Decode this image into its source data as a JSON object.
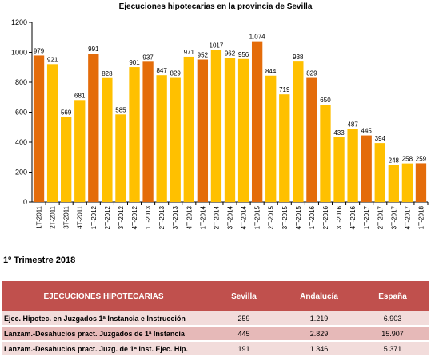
{
  "chart_data": {
    "type": "bar",
    "title": "Ejecuciones hipotecarias  en la provincia de Sevilla",
    "categories": [
      "1T-2011",
      "2T-2011",
      "3T-2011",
      "4T-2011",
      "1T-2012",
      "2T-2012",
      "3T-2012",
      "4T-2012",
      "1T-2013",
      "2T-2013",
      "3T-2013",
      "4T-2013",
      "1T-2014",
      "2T-2014",
      "3T-2014",
      "4T-2014",
      "1T-2015",
      "2T-2015",
      "3T-2015",
      "4T-2015",
      "1T-2016",
      "2T-2016",
      "3T-2016",
      "4T-2016",
      "1T-2017",
      "2T-2017",
      "3T-2017",
      "4T-2017",
      "1T-2018"
    ],
    "values": [
      979,
      921,
      569,
      681,
      991,
      828,
      585,
      901,
      937,
      847,
      829,
      971,
      952,
      1017,
      962,
      956,
      1074,
      844,
      719,
      938,
      829,
      650,
      433,
      487,
      445,
      394,
      248,
      258,
      259
    ],
    "value_labels": [
      "979",
      "921",
      "569",
      "681",
      "991",
      "828",
      "585",
      "901",
      "937",
      "847",
      "829",
      "971",
      "952",
      "1017",
      "962",
      "956",
      "1.074",
      "844",
      "719",
      "938",
      "829",
      "650",
      "433",
      "487",
      "445",
      "394",
      "248",
      "258",
      "259"
    ],
    "ylim": [
      0,
      1200
    ],
    "yticks": [
      0,
      200,
      400,
      600,
      800,
      1000,
      1200
    ],
    "grid": false,
    "legend": "none",
    "colors": {
      "first_quarter": "#E46C0A",
      "other_quarters": "#FFC000"
    }
  },
  "summary": {
    "heading": "1º Trimestre 2018",
    "columns": [
      "EJECUCIONES HIPOTECARIAS",
      "Sevilla",
      "Andalucía",
      "España"
    ],
    "rows": [
      [
        "Ejec. Hipotec. en Juzgados 1ª Instancia e Instrucción",
        "259",
        "1.219",
        "6.903"
      ],
      [
        "Lanzam.-Desahucios pract. Juzgados de 1ª Instancia",
        "445",
        "2.829",
        "15.907"
      ],
      [
        "Lanzam.-Desahucios pract. Juzg. de 1ª Inst. Ejec. Hip.",
        "191",
        "1.346",
        "5.371"
      ]
    ],
    "colors": {
      "header_bg": "#C0504D",
      "row_odd": "#F2DCDB",
      "row_even": "#E6B9B8"
    }
  }
}
